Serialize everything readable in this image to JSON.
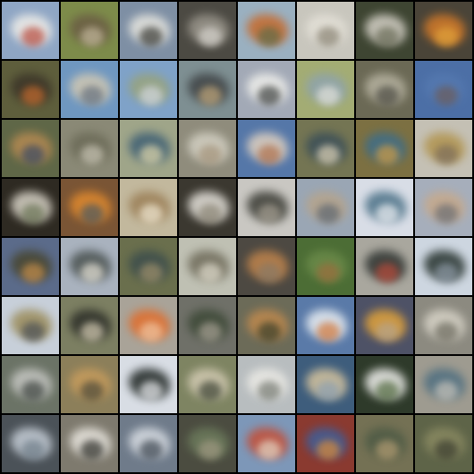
{
  "grid": {
    "rows": 8,
    "cols": 8,
    "border_color": "#000000",
    "tiles": [
      {
        "bg": "#8fa6c4",
        "fg": "#f1efe9",
        "ac": "#b84a3c"
      },
      {
        "bg": "#7d8b4a",
        "fg": "#6a5c44",
        "ac": "#c3b79c"
      },
      {
        "bg": "#7e8fa4",
        "fg": "#e7e6df",
        "ac": "#3a3a34"
      },
      {
        "bg": "#4c4a43",
        "fg": "#9a968c",
        "ac": "#d8d5cf"
      },
      {
        "bg": "#9ab0c0",
        "fg": "#c76a2c",
        "ac": "#5f6b47"
      },
      {
        "bg": "#c8c6bd",
        "fg": "#e4e1d8",
        "ac": "#8a8474"
      },
      {
        "bg": "#3e4532",
        "fg": "#d6d2c8",
        "ac": "#6a6c58"
      },
      {
        "bg": "#4a4438",
        "fg": "#d27a2a",
        "ac": "#e2a33a"
      },
      {
        "bg": "#5e5e3c",
        "fg": "#3b3428",
        "ac": "#c46a2e"
      },
      {
        "bg": "#6f97c0",
        "fg": "#d2c9b3",
        "ac": "#66707d"
      },
      {
        "bg": "#7fa2c8",
        "fg": "#98a37c",
        "ac": "#d4d8df"
      },
      {
        "bg": "#7e8f92",
        "fg": "#3f4345",
        "ac": "#c1a679"
      },
      {
        "bg": "#a2a9b6",
        "fg": "#f0f0ec",
        "ac": "#3f4240"
      },
      {
        "bg": "#a3ac74",
        "fg": "#8ea3ad",
        "ac": "#e4e3dd"
      },
      {
        "bg": "#6b6955",
        "fg": "#b7b3a1",
        "ac": "#4d4c44"
      },
      {
        "bg": "#4c6fa6",
        "fg": "#5579b0",
        "ac": "#6c5c5a"
      },
      {
        "bg": "#5f6747",
        "fg": "#b78b52",
        "ac": "#3c4a64"
      },
      {
        "bg": "#8a8976",
        "fg": "#6b6a57",
        "ac": "#c8c4b4"
      },
      {
        "bg": "#9fa589",
        "fg": "#3e5f74",
        "ac": "#e0d7ab"
      },
      {
        "bg": "#8f8c7c",
        "fg": "#d4d1c4",
        "ac": "#a4937a"
      },
      {
        "bg": "#5577a8",
        "fg": "#e0d1c0",
        "ac": "#b0704a"
      },
      {
        "bg": "#747553",
        "fg": "#3a4e58",
        "ac": "#ded3b8"
      },
      {
        "bg": "#7c7042",
        "fg": "#3d6d8a",
        "ac": "#cf9c45"
      },
      {
        "bg": "#c4c0b4",
        "fg": "#b1944f",
        "ac": "#7b6c5a"
      },
      {
        "bg": "#2e2a22",
        "fg": "#d9d4c8",
        "ac": "#6a7455"
      },
      {
        "bg": "#7a5535",
        "fg": "#e18a2e",
        "ac": "#4d5a60"
      },
      {
        "bg": "#c2b89d",
        "fg": "#9b7f57",
        "ac": "#f0e8d3"
      },
      {
        "bg": "#3b3830",
        "fg": "#e6e3dc",
        "ac": "#8a8474"
      },
      {
        "bg": "#c9c7c2",
        "fg": "#3a3b34",
        "ac": "#a59f92"
      },
      {
        "bg": "#9aa6b4",
        "fg": "#b6a48b",
        "ac": "#5d6670"
      },
      {
        "bg": "#d8dde6",
        "fg": "#4a7086",
        "ac": "#eff1f4"
      },
      {
        "bg": "#a6aebb",
        "fg": "#c7a98a",
        "ac": "#6a6d72"
      },
      {
        "bg": "#5b6b8a",
        "fg": "#47452e",
        "ac": "#c68e4a"
      },
      {
        "bg": "#a9b2be",
        "fg": "#49514f",
        "ac": "#e6e2d6"
      },
      {
        "bg": "#6a6f4d",
        "fg": "#3c4d4c",
        "ac": "#9e8f6b"
      },
      {
        "bg": "#bfc0b3",
        "fg": "#6f6b5a",
        "ac": "#e0dccd"
      },
      {
        "bg": "#4d4942",
        "fg": "#c0844c",
        "ac": "#8a7a66"
      },
      {
        "bg": "#4c6d35",
        "fg": "#6b8b4a",
        "ac": "#9c6d3d"
      },
      {
        "bg": "#a9a79e",
        "fg": "#2e3330",
        "ac": "#b84a3a"
      },
      {
        "bg": "#cdd6e0",
        "fg": "#25312c",
        "ac": "#8e9aa6"
      },
      {
        "bg": "#c7cfd9",
        "fg": "#9b8c5a",
        "ac": "#4a4f55"
      },
      {
        "bg": "#7c7f62",
        "fg": "#2c2e28",
        "ac": "#d4cbb3"
      },
      {
        "bg": "#a9a398",
        "fg": "#e06d2c",
        "ac": "#f0c6a2"
      },
      {
        "bg": "#6f7068",
        "fg": "#3c4836",
        "ac": "#a6a093"
      },
      {
        "bg": "#6c6b58",
        "fg": "#c08a4e",
        "ac": "#3a3f2a"
      },
      {
        "bg": "#5a7aa8",
        "fg": "#e9eef2",
        "ac": "#d3783a"
      },
      {
        "bg": "#4e5266",
        "fg": "#e2a33a",
        "ac": "#b6a48c"
      },
      {
        "bg": "#8c8a80",
        "fg": "#d8d4c8",
        "ac": "#6c6a5e"
      },
      {
        "bg": "#6b7366",
        "fg": "#c6c7c3",
        "ac": "#3e4440"
      },
      {
        "bg": "#8c7f5a",
        "fg": "#c89d5d",
        "ac": "#4d4a3a"
      },
      {
        "bg": "#d8dde4",
        "fg": "#1e2522",
        "ac": "#e9ebee"
      },
      {
        "bg": "#7e8462",
        "fg": "#d3cbb3",
        "ac": "#3e4436"
      },
      {
        "bg": "#b8bdbf",
        "fg": "#ecebe6",
        "ac": "#767a72"
      },
      {
        "bg": "#3e5d7c",
        "fg": "#d6c49e",
        "ac": "#8da0b1"
      },
      {
        "bg": "#2e3a2a",
        "fg": "#f1f1ee",
        "ac": "#526a40"
      },
      {
        "bg": "#9e9b90",
        "fg": "#4e6e80",
        "ac": "#c7c3ba"
      },
      {
        "bg": "#4b5258",
        "fg": "#c6ced7",
        "ac": "#707e89"
      },
      {
        "bg": "#7e7a6e",
        "fg": "#e9e6df",
        "ac": "#2e2f2a"
      },
      {
        "bg": "#6f7b8a",
        "fg": "#d8dde3",
        "ac": "#3d4650"
      },
      {
        "bg": "#4b4c40",
        "fg": "#6c7b5c",
        "ac": "#a09982"
      },
      {
        "bg": "#7d97b8",
        "fg": "#c44e36",
        "ac": "#e3d7c4"
      },
      {
        "bg": "#8a3a30",
        "fg": "#3e5f9a",
        "ac": "#d98c3a"
      },
      {
        "bg": "#747154",
        "fg": "#4d5a45",
        "ac": "#b39c72"
      },
      {
        "bg": "#5e6448",
        "fg": "#8a8a62",
        "ac": "#3c3e30"
      }
    ]
  }
}
